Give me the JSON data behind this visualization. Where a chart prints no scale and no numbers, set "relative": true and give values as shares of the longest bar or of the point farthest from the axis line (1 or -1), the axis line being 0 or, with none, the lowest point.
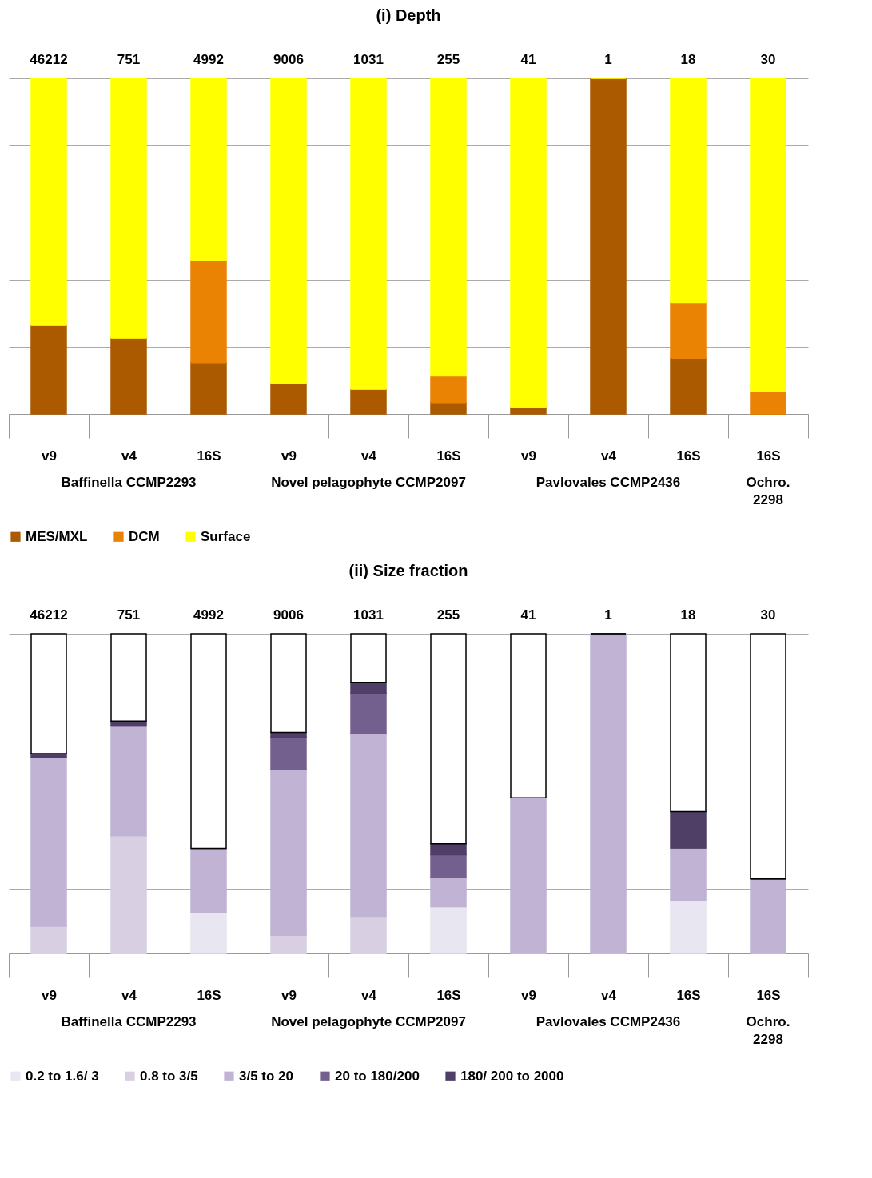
{
  "chart_data": [
    {
      "type": "bar",
      "title": "(i) Depth",
      "stacked": true,
      "relative": true,
      "grid": "y",
      "legend": "bottom",
      "categories": [
        "v9",
        "v4",
        "16S",
        "v9",
        "v4",
        "16S",
        "v9",
        "v4",
        "16S",
        "16S"
      ],
      "annotations": [
        "46212",
        "751",
        "4992",
        "9006",
        "1031",
        "255",
        "41",
        "1",
        "18",
        "30",
        "Baffinella CCMP2293",
        "Novel pelagophyte CCMP2097",
        "Pavlovales CCMP2436",
        "Ochro. 2298"
      ],
      "series": [
        {
          "name": "MES/MXL",
          "color": "#ab5a00",
          "values": [
            0.264,
            0.226,
            0.153,
            0.091,
            0.074,
            0.034,
            0.021,
            1,
            0.166,
            0
          ]
        },
        {
          "name": "DCM",
          "color": "#ea8204",
          "values": [
            0,
            0,
            0.304,
            0,
            0,
            0.079,
            0,
            0,
            0.166,
            0.066
          ]
        },
        {
          "name": "Surface",
          "color": "#ffff00",
          "values": [
            0.736,
            0.774,
            0.543,
            0.909,
            0.926,
            0.887,
            0.979,
            0,
            0.668,
            0.934
          ]
        }
      ]
    },
    {
      "type": "bar",
      "title": "(ii) Size fraction",
      "stacked": true,
      "relative": true,
      "grid": "y",
      "legend": "bottom",
      "categories": [
        "v9",
        "v4",
        "16S",
        "v9",
        "v4",
        "16S",
        "v9",
        "v4",
        "16S",
        "16S"
      ],
      "annotations": [
        "46212",
        "751",
        "4992",
        "9006",
        "1031",
        "255",
        "41",
        "1",
        "18",
        "30",
        "Baffinella CCMP2293",
        "Novel pelagophyte CCMP2097",
        "Pavlovales CCMP2436",
        "Ochro. 2298"
      ],
      "series": [
        {
          "name": "0.2 to 1.6/ 3",
          "color": "#e8e6f0",
          "values": [
            0,
            0,
            0.128,
            0,
            0,
            0.146,
            0,
            0,
            0.165,
            0
          ]
        },
        {
          "name": "0.8 to 3/5",
          "color": "#d8d0e2",
          "values": [
            0.085,
            0.368,
            0,
            0.057,
            0.114,
            0,
            0,
            0,
            0,
            0
          ]
        },
        {
          "name": "3/5 to 20",
          "color": "#c0b3d4",
          "values": [
            0.529,
            0.343,
            0.201,
            0.519,
            0.574,
            0.092,
            0.487,
            1,
            0.165,
            0.233
          ]
        },
        {
          "name": "20 to 180/200",
          "color": "#74608f",
          "values": [
            0,
            0,
            0,
            0.101,
            0.126,
            0.071,
            0,
            0,
            0,
            0
          ]
        },
        {
          "name": "180/ 200 to 2000",
          "color": "#4f3f66",
          "values": [
            0.011,
            0.016,
            0,
            0.014,
            0.034,
            0.034,
            0,
            0,
            0.114,
            0
          ]
        },
        {
          "color": "#ffffff",
          "values": [
            0.375,
            0.273,
            0.671,
            0.309,
            0.152,
            0.657,
            0.513,
            0,
            0.556,
            0.767
          ]
        }
      ]
    }
  ]
}
